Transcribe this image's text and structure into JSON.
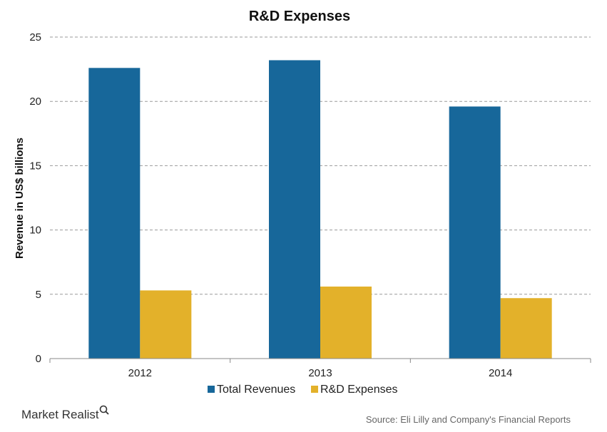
{
  "chart_data": {
    "type": "bar",
    "title": "R&D Expenses",
    "ylabel": "Revenue in US$ billions",
    "xlabel": "",
    "categories": [
      "2012",
      "2013",
      "2014"
    ],
    "series": [
      {
        "name": "Total Revenues",
        "values": [
          22.6,
          23.2,
          19.6
        ],
        "color": "#17679a"
      },
      {
        "name": "R&D Expenses",
        "values": [
          5.3,
          5.6,
          4.7
        ],
        "color": "#e3b12a"
      }
    ],
    "ylim": [
      0,
      25
    ],
    "yticks": [
      0,
      5,
      10,
      15,
      20,
      25
    ],
    "grid": true,
    "grid_style": "dashed",
    "legend_position": "bottom"
  },
  "source": "Source: Eli Lilly and Company's Financial Reports",
  "brand": "Market Realist"
}
